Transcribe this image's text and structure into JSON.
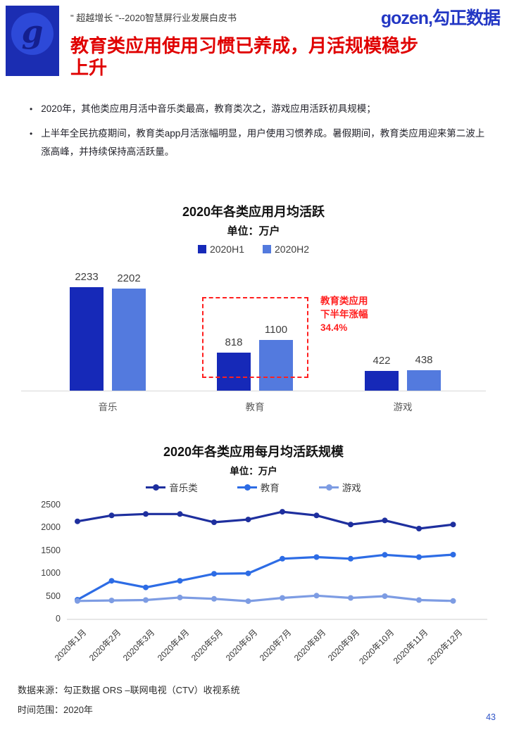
{
  "header": {
    "doc_title": "\" 超越增长 \"--2020智慧屏行业发展白皮书",
    "brand": "gozen,勾正数据",
    "logo_letter": "g",
    "page_title": "教育类应用使用习惯已养成，月活规模稳步上升",
    "title_color": "#e00000"
  },
  "bullets": [
    "2020年，其他类应用月活中音乐类最高，教育类次之，游戏应用活跃初具规模；",
    "上半年全民抗疫期间，教育类app月活涨幅明显，用户使用习惯养成。暑假期间，教育类应用迎来第二波上涨高峰，并持续保持高活跃量。"
  ],
  "chart_data": [
    {
      "type": "bar",
      "title": "2020年各类应用月均活跃",
      "subtitle": "单位：万户",
      "categories": [
        "音乐",
        "教育",
        "游戏"
      ],
      "series": [
        {
          "name": "2020H1",
          "color": "#1629b8",
          "values": [
            2233,
            818,
            422
          ]
        },
        {
          "name": "2020H2",
          "color": "#537ade",
          "values": [
            2202,
            1100,
            438
          ]
        }
      ],
      "ylim": [
        0,
        2350
      ],
      "grid": false,
      "legend_position": "top",
      "annotation": {
        "lines": [
          "教育类应用",
          "下半年涨幅",
          "34.4%"
        ],
        "color": "#ff1f1f",
        "target_category": "教育",
        "box_style": "red-dashed"
      }
    },
    {
      "type": "line",
      "title": "2020年各类应用每月均活跃规模",
      "subtitle": "单位：万户",
      "x": [
        "2020年1月",
        "2020年2月",
        "2020年3月",
        "2020年4月",
        "2020年5月",
        "2020年6月",
        "2020年7月",
        "2020年8月",
        "2020年9月",
        "2020年10月",
        "2020年11月",
        "2020年12月"
      ],
      "series": [
        {
          "name": "音乐类",
          "color": "#1e2f9e",
          "values": [
            2150,
            2280,
            2310,
            2310,
            2130,
            2190,
            2360,
            2280,
            2080,
            2170,
            1990,
            2080
          ]
        },
        {
          "name": "教育",
          "color": "#2d6ce5",
          "values": [
            430,
            845,
            700,
            845,
            1000,
            1010,
            1330,
            1365,
            1330,
            1415,
            1365,
            1420
          ]
        },
        {
          "name": "游戏",
          "color": "#7d9ce3",
          "values": [
            405,
            415,
            425,
            480,
            450,
            400,
            470,
            520,
            470,
            510,
            425,
            405
          ]
        }
      ],
      "yticks": [
        0,
        500,
        1000,
        1500,
        2000,
        2500
      ],
      "ylim": [
        0,
        2500
      ],
      "grid": false,
      "legend_position": "top"
    }
  ],
  "footer": {
    "source": "数据来源：勾正数据 ORS –联网电视（CTV）收视系统",
    "time_range": "时间范围：2020年",
    "page_number": "43"
  }
}
